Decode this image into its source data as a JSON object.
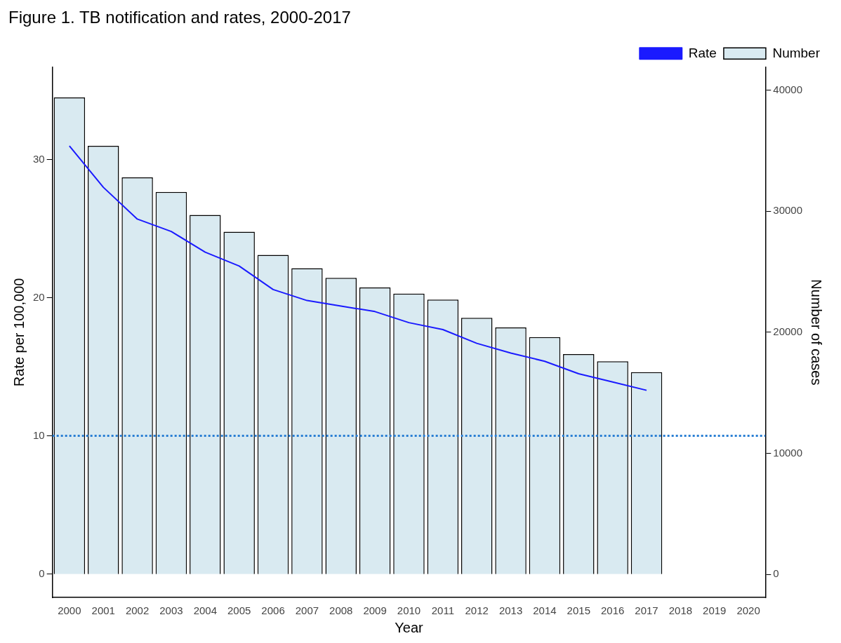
{
  "chart_data": {
    "type": "bar",
    "title": "Figure 1. TB notification and rates, 2000-2017",
    "xlabel": "Year",
    "ylabel": "Rate per 100,000",
    "y2label": "Number of cases",
    "categories": [
      "2000",
      "2001",
      "2002",
      "2003",
      "2004",
      "2005",
      "2006",
      "2007",
      "2008",
      "2009",
      "2010",
      "2011",
      "2012",
      "2013",
      "2014",
      "2015",
      "2016",
      "2017",
      "2018",
      "2019",
      "2020"
    ],
    "series": [
      {
        "name": "Number",
        "axis": "y2",
        "color": "#d9eaf1",
        "values": [
          39400,
          35400,
          32800,
          31600,
          29700,
          28300,
          26400,
          25300,
          24500,
          23700,
          23200,
          22700,
          21200,
          20400,
          19600,
          18200,
          17600,
          16700,
          null,
          null,
          null
        ]
      },
      {
        "name": "Rate",
        "type": "line",
        "color": "#1a1aff",
        "values": [
          31.0,
          28.0,
          25.7,
          24.8,
          23.3,
          22.3,
          20.6,
          19.8,
          19.4,
          19.0,
          18.2,
          17.7,
          16.7,
          16.0,
          15.4,
          14.5,
          13.9,
          13.3,
          null,
          null,
          null
        ]
      }
    ],
    "ylim": [
      -1.7,
      36.7
    ],
    "yticks": [
      0,
      10,
      20,
      30
    ],
    "y2lim": [
      -1900,
      41900
    ],
    "y2ticks": [
      0,
      10000,
      20000,
      30000,
      40000
    ],
    "ref_lines": [
      {
        "axis": "y",
        "value": 10,
        "color": "#2a7fd4",
        "line_style": "dotted"
      }
    ],
    "legend": "top right",
    "grid": false,
    "marker": "none",
    "line_style": "solid"
  }
}
